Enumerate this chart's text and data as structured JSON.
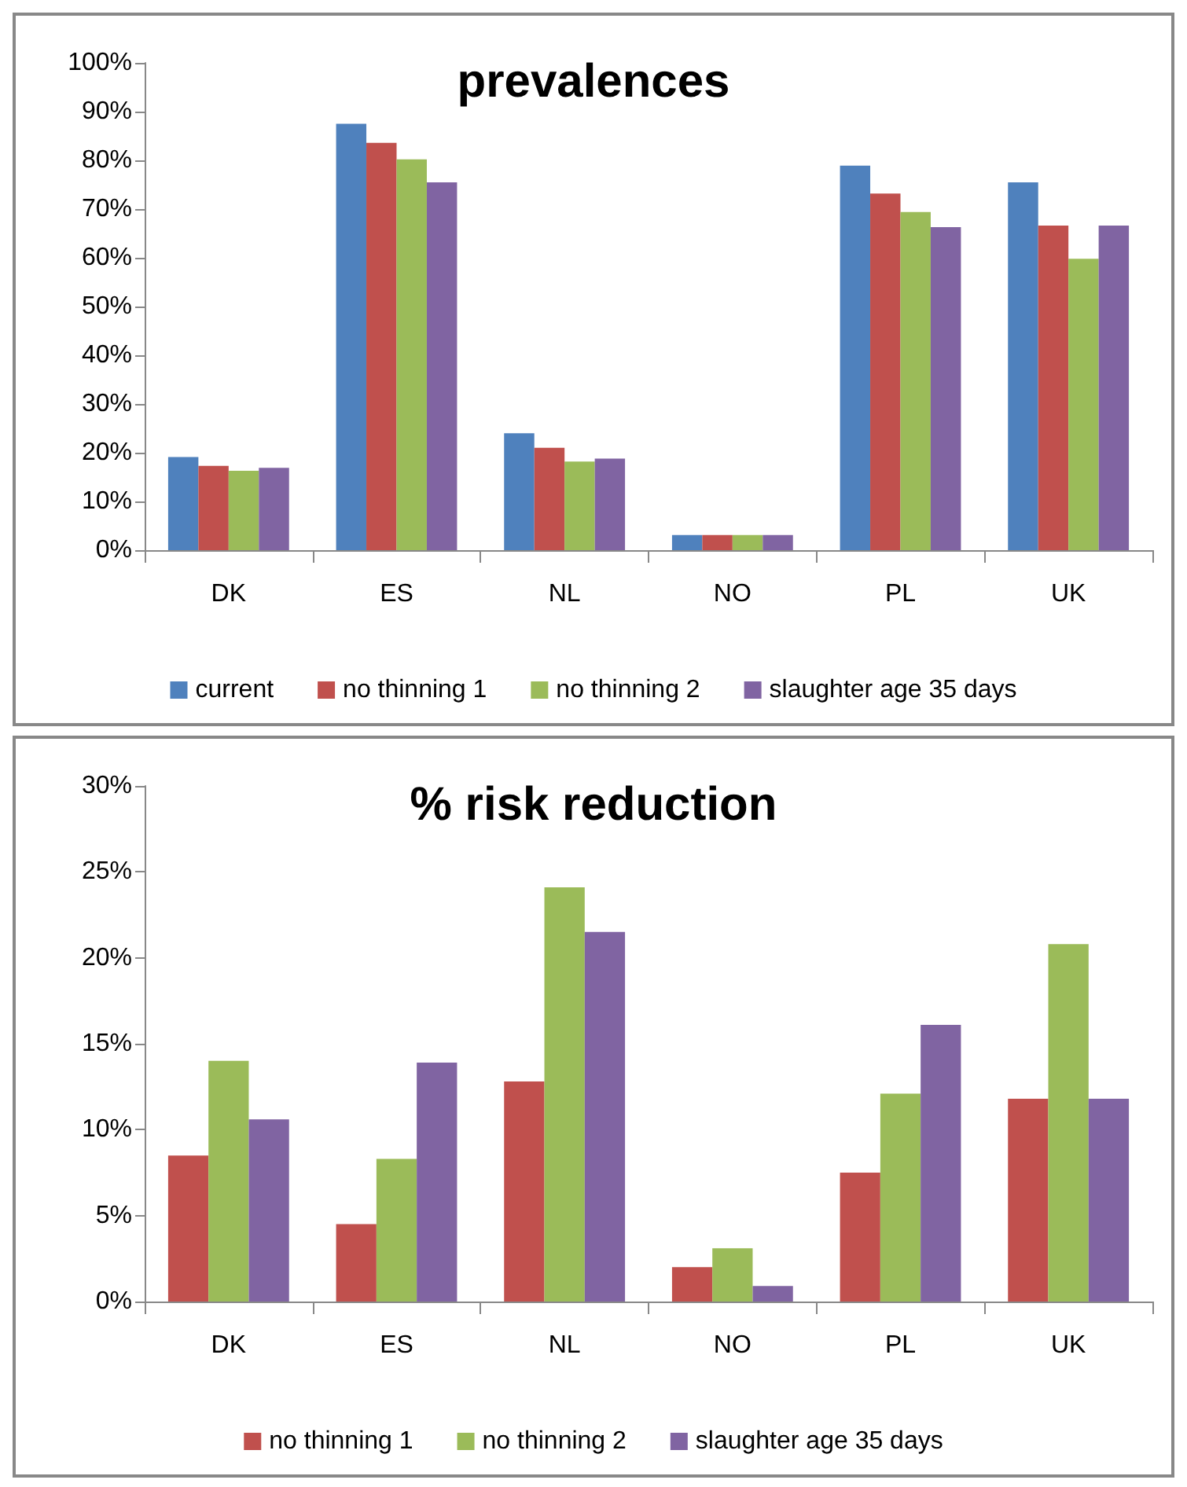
{
  "chart_data": [
    {
      "type": "bar",
      "title": "prevalences",
      "categories": [
        "DK",
        "ES",
        "NL",
        "NO",
        "PL",
        "UK"
      ],
      "series": [
        {
          "name": "current",
          "color": "#4f81bd",
          "values": [
            19.1,
            87.5,
            24.0,
            3.1,
            78.9,
            75.5
          ]
        },
        {
          "name": "no thinning 1",
          "color": "#c0504d",
          "values": [
            17.3,
            83.6,
            21.0,
            3.1,
            73.2,
            66.6
          ]
        },
        {
          "name": "no thinning 2",
          "color": "#9bbb59",
          "values": [
            16.3,
            80.2,
            18.2,
            3.1,
            69.4,
            59.8
          ]
        },
        {
          "name": "slaughter age 35 days",
          "color": "#8064a2",
          "values": [
            16.9,
            75.5,
            18.8,
            3.1,
            66.3,
            66.6
          ]
        }
      ],
      "ylim": [
        0,
        100
      ],
      "yticks": [
        {
          "value": 0,
          "label": "0%"
        },
        {
          "value": 10,
          "label": "10%"
        },
        {
          "value": 20,
          "label": "20%"
        },
        {
          "value": 30,
          "label": "30%"
        },
        {
          "value": 40,
          "label": "40%"
        },
        {
          "value": 50,
          "label": "50%"
        },
        {
          "value": 60,
          "label": "60%"
        },
        {
          "value": 70,
          "label": "70%"
        },
        {
          "value": 80,
          "label": "80%"
        },
        {
          "value": 90,
          "label": "90%"
        },
        {
          "value": 100,
          "label": "100%"
        }
      ],
      "grid": false,
      "legend": "bottom"
    },
    {
      "type": "bar",
      "title": "% risk reduction",
      "categories": [
        "DK",
        "ES",
        "NL",
        "NO",
        "PL",
        "UK"
      ],
      "series": [
        {
          "name": "no thinning 1",
          "color": "#c0504d",
          "values": [
            8.5,
            4.5,
            12.8,
            2.0,
            7.5,
            11.8
          ]
        },
        {
          "name": "no thinning 2",
          "color": "#9bbb59",
          "values": [
            14.0,
            8.3,
            24.1,
            3.1,
            12.1,
            20.8
          ]
        },
        {
          "name": "slaughter age 35 days",
          "color": "#8064a2",
          "values": [
            10.6,
            13.9,
            21.5,
            0.9,
            16.1,
            11.8
          ]
        }
      ],
      "ylim": [
        0,
        30
      ],
      "yticks": [
        {
          "value": 0,
          "label": "0%"
        },
        {
          "value": 5,
          "label": "5%"
        },
        {
          "value": 10,
          "label": "10%"
        },
        {
          "value": 15,
          "label": "15%"
        },
        {
          "value": 20,
          "label": "20%"
        },
        {
          "value": 25,
          "label": "25%"
        },
        {
          "value": 30,
          "label": "30%"
        }
      ],
      "grid": false,
      "legend": "bottom"
    }
  ]
}
